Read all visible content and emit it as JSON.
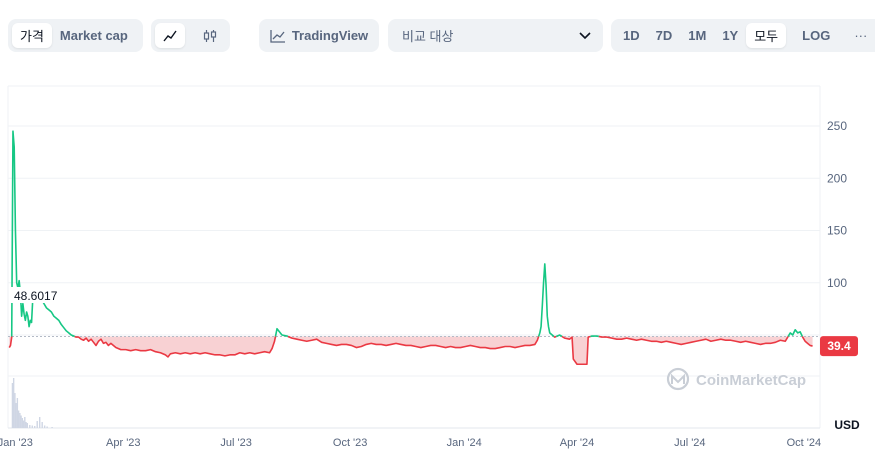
{
  "toolbar": {
    "price_tab": "가격",
    "market_cap_tab": "Market cap",
    "line_icon": "line-chart-icon",
    "candle_icon": "candlestick-icon",
    "tradingview_label": "TradingView",
    "compare_placeholder": "비교 대상",
    "ranges": [
      "1D",
      "7D",
      "1M",
      "1Y",
      "모두"
    ],
    "active_range": "모두",
    "log_label": "LOG",
    "more_label": "···"
  },
  "colors": {
    "up": "#16c784",
    "down": "#ea3943",
    "down_fill": "#f7c9cb",
    "grid": "#eff2f5",
    "volume": "#cfd6e4"
  },
  "chart_data": {
    "type": "line",
    "baseline_value": 48.6017,
    "baseline_label": "48.6017",
    "current_value": 39.4,
    "current_label": "39.4",
    "currency_label": "USD",
    "watermark": "CoinMarketCap",
    "ylim": [
      0,
      290
    ],
    "y_ticks": [
      50,
      100,
      150,
      200,
      250
    ],
    "y_tick_labels": [
      "",
      "100",
      "150",
      "200",
      "250"
    ],
    "x_tick_labels": [
      "Jan '23",
      "Apr '23",
      "Jul '23",
      "Oct '23",
      "Jan '24",
      "Apr '24",
      "Jul '24",
      "Oct '24"
    ],
    "x_tick_days": [
      0,
      90,
      181,
      273,
      365,
      456,
      547,
      639
    ],
    "x_range_days": [
      -3,
      652
    ],
    "series": [
      {
        "points": [
          [
            -2,
            38
          ],
          [
            -1,
            40
          ],
          [
            0,
            48
          ],
          [
            1,
            245
          ],
          [
            2,
            230
          ],
          [
            3,
            150
          ],
          [
            4,
            100
          ],
          [
            5,
            95
          ],
          [
            6,
            102
          ],
          [
            7,
            90
          ],
          [
            8,
            68
          ],
          [
            9,
            80
          ],
          [
            10,
            70
          ],
          [
            11,
            64
          ],
          [
            12,
            72
          ],
          [
            13,
            68
          ],
          [
            14,
            58
          ],
          [
            15,
            64
          ],
          [
            16,
            62
          ],
          [
            17,
            85
          ],
          [
            18,
            84
          ],
          [
            20,
            88
          ],
          [
            22,
            86
          ],
          [
            24,
            84
          ],
          [
            26,
            80
          ],
          [
            28,
            76
          ],
          [
            30,
            74
          ],
          [
            32,
            72
          ],
          [
            34,
            68
          ],
          [
            36,
            66
          ],
          [
            38,
            64
          ],
          [
            40,
            60
          ],
          [
            42,
            57
          ],
          [
            44,
            54
          ],
          [
            46,
            52
          ],
          [
            48,
            50
          ],
          [
            50,
            49
          ],
          [
            52,
            48
          ],
          [
            54,
            48
          ],
          [
            56,
            46
          ],
          [
            58,
            45
          ],
          [
            60,
            47
          ],
          [
            62,
            44
          ],
          [
            64,
            46
          ],
          [
            66,
            43
          ],
          [
            68,
            40
          ],
          [
            70,
            44
          ],
          [
            72,
            46
          ],
          [
            74,
            42
          ],
          [
            76,
            43
          ],
          [
            78,
            40
          ],
          [
            80,
            42
          ],
          [
            84,
            38
          ],
          [
            88,
            36
          ],
          [
            92,
            36
          ],
          [
            96,
            35
          ],
          [
            100,
            36
          ],
          [
            104,
            35
          ],
          [
            108,
            35
          ],
          [
            112,
            36
          ],
          [
            116,
            34
          ],
          [
            120,
            33
          ],
          [
            124,
            31
          ],
          [
            126,
            29
          ],
          [
            128,
            32
          ],
          [
            132,
            33
          ],
          [
            136,
            32
          ],
          [
            140,
            33
          ],
          [
            144,
            32
          ],
          [
            148,
            33
          ],
          [
            152,
            32
          ],
          [
            156,
            33
          ],
          [
            160,
            32
          ],
          [
            164,
            31
          ],
          [
            168,
            31
          ],
          [
            172,
            30
          ],
          [
            176,
            31
          ],
          [
            180,
            31
          ],
          [
            184,
            33
          ],
          [
            188,
            32
          ],
          [
            192,
            33
          ],
          [
            196,
            32
          ],
          [
            200,
            33
          ],
          [
            204,
            34
          ],
          [
            208,
            33
          ],
          [
            210,
            37
          ],
          [
            212,
            44
          ],
          [
            214,
            56
          ],
          [
            216,
            53
          ],
          [
            218,
            50
          ],
          [
            222,
            49
          ],
          [
            226,
            47
          ],
          [
            230,
            46
          ],
          [
            234,
            45
          ],
          [
            238,
            44
          ],
          [
            242,
            45
          ],
          [
            246,
            46
          ],
          [
            250,
            43
          ],
          [
            254,
            42
          ],
          [
            258,
            41
          ],
          [
            262,
            40
          ],
          [
            266,
            41
          ],
          [
            270,
            41
          ],
          [
            274,
            40
          ],
          [
            278,
            38
          ],
          [
            282,
            39
          ],
          [
            286,
            41
          ],
          [
            290,
            42
          ],
          [
            294,
            41
          ],
          [
            298,
            41
          ],
          [
            302,
            40
          ],
          [
            306,
            41
          ],
          [
            310,
            42
          ],
          [
            314,
            41
          ],
          [
            318,
            40
          ],
          [
            322,
            40
          ],
          [
            326,
            39
          ],
          [
            330,
            38
          ],
          [
            334,
            39
          ],
          [
            338,
            40
          ],
          [
            342,
            40
          ],
          [
            346,
            39
          ],
          [
            350,
            38
          ],
          [
            354,
            39
          ],
          [
            358,
            38
          ],
          [
            362,
            38
          ],
          [
            366,
            39
          ],
          [
            370,
            40
          ],
          [
            374,
            39
          ],
          [
            378,
            38
          ],
          [
            382,
            38
          ],
          [
            386,
            37
          ],
          [
            390,
            37
          ],
          [
            394,
            38
          ],
          [
            398,
            39
          ],
          [
            402,
            39
          ],
          [
            406,
            38
          ],
          [
            410,
            39
          ],
          [
            414,
            40
          ],
          [
            418,
            40
          ],
          [
            422,
            41
          ],
          [
            424,
            45
          ],
          [
            426,
            52
          ],
          [
            427,
            58
          ],
          [
            428,
            78
          ],
          [
            429,
            100
          ],
          [
            430,
            118
          ],
          [
            431,
            98
          ],
          [
            432,
            68
          ],
          [
            433,
            58
          ],
          [
            434,
            52
          ],
          [
            436,
            50
          ],
          [
            438,
            48
          ],
          [
            442,
            50
          ],
          [
            446,
            47
          ],
          [
            450,
            46
          ],
          [
            452,
            48
          ],
          [
            453,
            27
          ],
          [
            456,
            22
          ],
          [
            460,
            22
          ],
          [
            464,
            22
          ],
          [
            465,
            48
          ],
          [
            468,
            49
          ],
          [
            472,
            49
          ],
          [
            476,
            48
          ],
          [
            480,
            48
          ],
          [
            484,
            47
          ],
          [
            488,
            46
          ],
          [
            492,
            46
          ],
          [
            496,
            47
          ],
          [
            500,
            46
          ],
          [
            504,
            45
          ],
          [
            508,
            46
          ],
          [
            512,
            45
          ],
          [
            516,
            44
          ],
          [
            520,
            44
          ],
          [
            524,
            43
          ],
          [
            528,
            44
          ],
          [
            532,
            43
          ],
          [
            536,
            42
          ],
          [
            540,
            41
          ],
          [
            544,
            42
          ],
          [
            548,
            43
          ],
          [
            552,
            44
          ],
          [
            556,
            45
          ],
          [
            560,
            46
          ],
          [
            564,
            44
          ],
          [
            568,
            45
          ],
          [
            572,
            46
          ],
          [
            576,
            45
          ],
          [
            580,
            45
          ],
          [
            584,
            44
          ],
          [
            588,
            43
          ],
          [
            592,
            44
          ],
          [
            596,
            43
          ],
          [
            600,
            42
          ],
          [
            604,
            41
          ],
          [
            608,
            42
          ],
          [
            612,
            42
          ],
          [
            616,
            43
          ],
          [
            620,
            45
          ],
          [
            624,
            44
          ],
          [
            626,
            48
          ],
          [
            628,
            52
          ],
          [
            630,
            50
          ],
          [
            632,
            55
          ],
          [
            634,
            52
          ],
          [
            636,
            53
          ],
          [
            638,
            48
          ],
          [
            640,
            44
          ],
          [
            642,
            42
          ],
          [
            644,
            40
          ],
          [
            646,
            39.4
          ]
        ]
      }
    ],
    "volume": [
      [
        0,
        0.9
      ],
      [
        1,
        1.0
      ],
      [
        2,
        0.7
      ],
      [
        3,
        0.5
      ],
      [
        4,
        0.6
      ],
      [
        5,
        0.35
      ],
      [
        6,
        0.3
      ],
      [
        7,
        0.25
      ],
      [
        8,
        0.2
      ],
      [
        9,
        0.15
      ],
      [
        10,
        0.22
      ],
      [
        11,
        0.12
      ],
      [
        12,
        0.1
      ],
      [
        14,
        0.06
      ],
      [
        16,
        0.05
      ],
      [
        18,
        0.04
      ],
      [
        20,
        0.14
      ],
      [
        22,
        0.22
      ],
      [
        24,
        0.12
      ],
      [
        26,
        0.05
      ],
      [
        28,
        0.03
      ],
      [
        32,
        0.02
      ]
    ]
  }
}
